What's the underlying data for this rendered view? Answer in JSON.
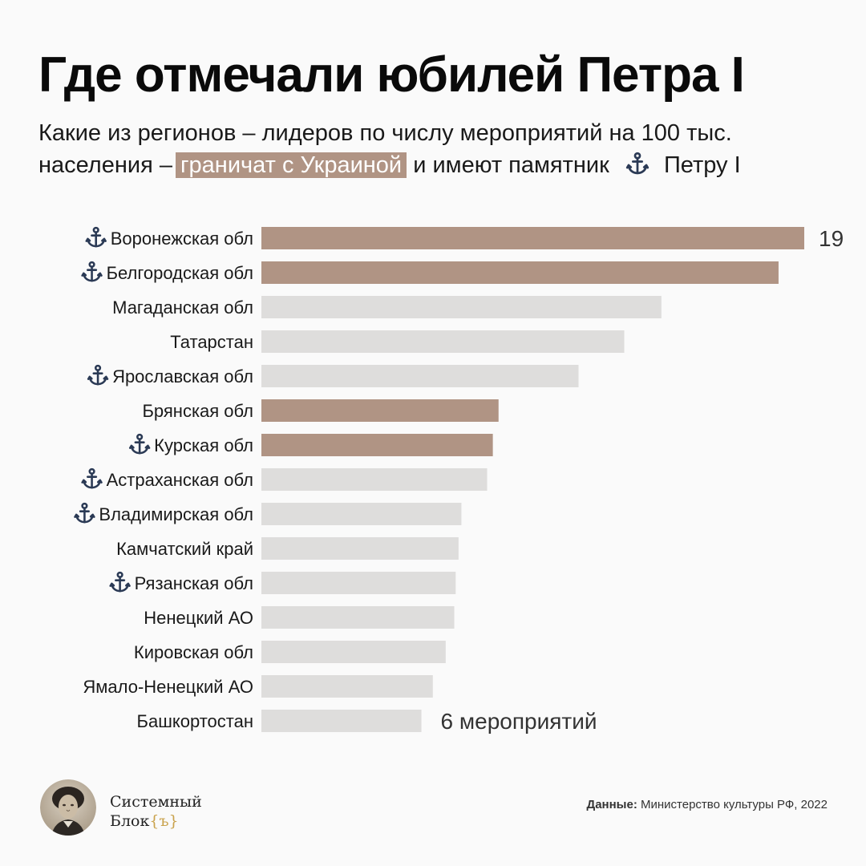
{
  "title": "Где отмечали юбилей Петра I",
  "subtitle": {
    "line1": "Какие из регионов – лидеров по числу мероприятий на 100 тыс.",
    "line2_prefix": "населения –",
    "highlight": "граничат с Украиной",
    "line2_middle": "и имеют памятник",
    "line2_suffix": "Петру I",
    "anchor_icon": "anchor-icon"
  },
  "colors": {
    "highlight": "#b09484",
    "bar_default": "#dedddc",
    "bar_highlight": "#b09484",
    "anchor": "#2b3a55",
    "brand_braces": "#c9a24c"
  },
  "chart_data": {
    "type": "bar",
    "orientation": "horizontal",
    "categories": [
      "Воронежская обл",
      "Белгородская обл",
      "Магаданская обл",
      "Татарстан",
      "Ярославская обл",
      "Брянская обл",
      "Курская обл",
      "Астраханская обл",
      "Владимирская обл",
      "Камчатский край",
      "Рязанская обл",
      "Ненецкий АО",
      "Кировская обл",
      "Ямало-Ненецкий АО",
      "Башкортостан"
    ],
    "values": [
      19,
      18.1,
      14,
      12.7,
      11.1,
      8.3,
      8.1,
      7.9,
      7.0,
      6.9,
      6.8,
      6.75,
      6.45,
      6.0,
      5.6
    ],
    "borders_ukraine": [
      true,
      true,
      false,
      false,
      false,
      true,
      true,
      false,
      false,
      false,
      false,
      false,
      false,
      false,
      false
    ],
    "peter_monument": [
      true,
      true,
      false,
      false,
      true,
      false,
      true,
      true,
      true,
      false,
      true,
      false,
      false,
      false,
      false
    ],
    "value_labels": [
      {
        "index": 0,
        "text": "19"
      },
      {
        "index": 14,
        "text": "6 мероприятий"
      }
    ],
    "xlim": [
      0,
      19
    ]
  },
  "footer": {
    "brand_line1": "Системный",
    "brand_line2": "Блок",
    "brand_braces": "{ъ}",
    "source_label": "Данные:",
    "source_text": "Министерство культуры РФ, 2022"
  }
}
